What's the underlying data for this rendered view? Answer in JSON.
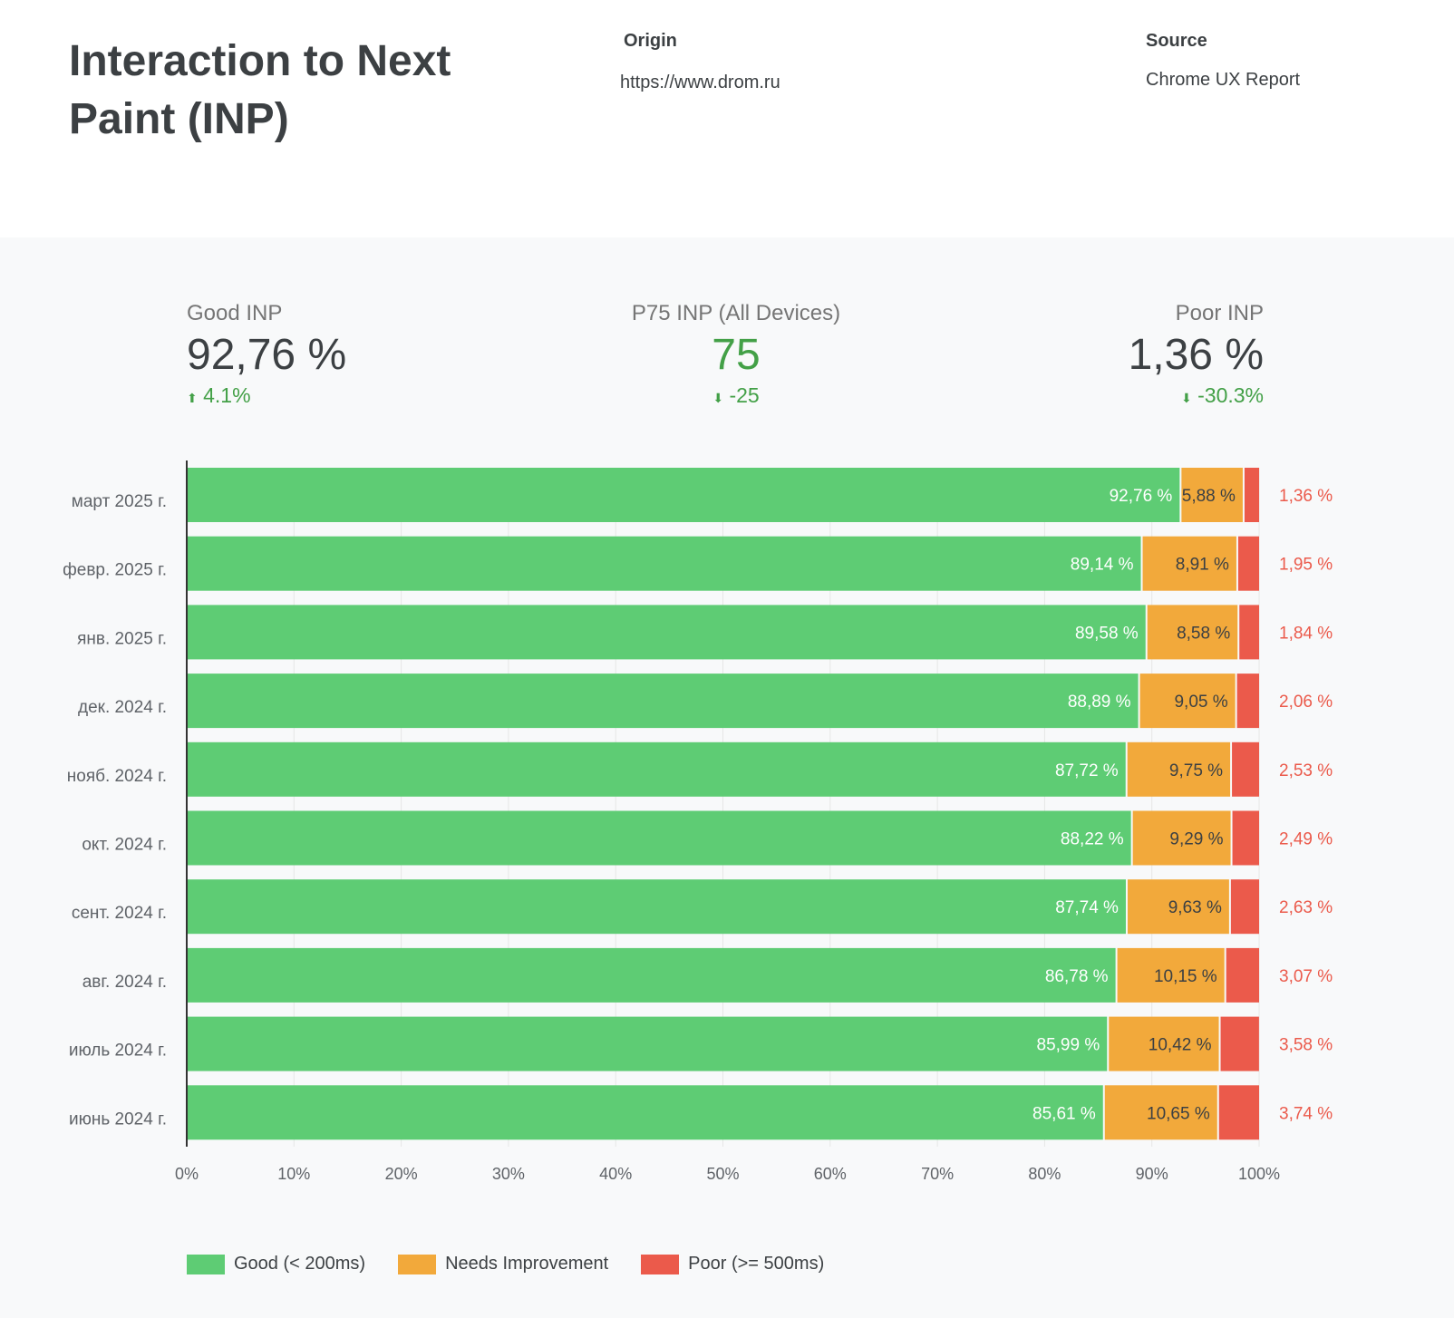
{
  "header": {
    "title": "Interaction to Next Paint (INP)",
    "origin_label": "Origin",
    "origin_value": "https://www.drom.ru",
    "source_label": "Source",
    "source_value": "Chrome UX Report"
  },
  "kpis": [
    {
      "label": "Good INP",
      "value": "92,76 %",
      "delta": "4.1%",
      "arrow": "up",
      "color": "#43a047"
    },
    {
      "label": "P75 INP (All Devices)",
      "value": "75",
      "delta": "-25",
      "arrow": "down",
      "color": "#43a047"
    },
    {
      "label": "Poor INP",
      "value": "1,36 %",
      "delta": "-30.3%",
      "arrow": "down",
      "color": "#43a047"
    }
  ],
  "colors": {
    "good": "#5ecc74",
    "ni": "#f2a93b",
    "poor": "#eb5a4b"
  },
  "chart_data": {
    "type": "bar",
    "stacked": true,
    "orientation": "horizontal",
    "categories": [
      "март 2025 г.",
      "февр. 2025 г.",
      "янв. 2025 г.",
      "дек. 2024 г.",
      "нояб. 2024 г.",
      "окт. 2024 г.",
      "сент. 2024 г.",
      "авг. 2024 г.",
      "июль 2024 г.",
      "июнь 2024 г."
    ],
    "series": [
      {
        "name": "Good (< 200ms)",
        "values": [
          92.76,
          89.14,
          89.58,
          88.89,
          87.72,
          88.22,
          87.74,
          86.78,
          85.99,
          85.61
        ],
        "labels": [
          "92,76 %",
          "89,14 %",
          "89,58 %",
          "88,89 %",
          "87,72 %",
          "88,22 %",
          "87,74 %",
          "86,78 %",
          "85,99 %",
          "85,61 %"
        ]
      },
      {
        "name": "Needs Improvement",
        "values": [
          5.88,
          8.91,
          8.58,
          9.05,
          9.75,
          9.29,
          9.63,
          10.15,
          10.42,
          10.65
        ],
        "labels": [
          "5,88 %",
          "8,91 %",
          "8,58 %",
          "9,05 %",
          "9,75 %",
          "9,29 %",
          "9,63 %",
          "10,15 %",
          "10,42 %",
          "10,65 %"
        ]
      },
      {
        "name": "Poor (>= 500ms)",
        "values": [
          1.36,
          1.95,
          1.84,
          2.06,
          2.53,
          2.49,
          2.63,
          3.07,
          3.58,
          3.74
        ],
        "labels": [
          "1,36 %",
          "1,95 %",
          "1,84 %",
          "2,06 %",
          "2,53 %",
          "2,49 %",
          "2,63 %",
          "3,07 %",
          "3,58 %",
          "3,74 %"
        ]
      }
    ],
    "xlim": [
      0,
      100
    ],
    "xticks": [
      "0%",
      "10%",
      "20%",
      "30%",
      "40%",
      "50%",
      "60%",
      "70%",
      "80%",
      "90%",
      "100%"
    ],
    "legend": "bottom-left",
    "grid": true
  }
}
